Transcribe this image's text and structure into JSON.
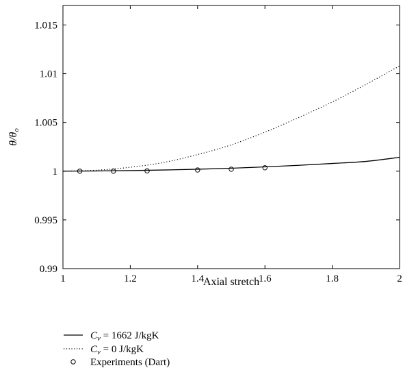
{
  "chart_data": {
    "type": "line",
    "title": "",
    "xlabel": "Axial stretch",
    "ylabel": {
      "main": "θ/θ",
      "sub": "o"
    },
    "xlim": [
      1,
      2
    ],
    "ylim": [
      0.99,
      1.017
    ],
    "xticks": [
      1,
      1.2,
      1.4,
      1.6,
      1.8,
      2
    ],
    "xtick_labels": [
      "1",
      "1.2",
      "1.4",
      "1.6",
      "1.8",
      "2"
    ],
    "yticks": [
      0.99,
      0.995,
      1,
      1.005,
      1.01,
      1.015
    ],
    "ytick_labels": [
      "0.99",
      "0.995",
      "1",
      "1.005",
      "1.01",
      "1.015"
    ],
    "grid": false,
    "legend_position": "below",
    "series": [
      {
        "name": "C_v = 1662 J/kgK",
        "legend": {
          "sym": "C",
          "sub": "v",
          "text": " = 1662 J/kgK"
        },
        "style": "solid",
        "x": [
          1.0,
          1.1,
          1.2,
          1.3,
          1.4,
          1.5,
          1.6,
          1.7,
          1.8,
          1.9,
          2.0
        ],
        "y": [
          1.0,
          1.00002,
          1.00006,
          1.00012,
          1.0002,
          1.0003,
          1.00044,
          1.0006,
          1.00079,
          1.001,
          1.00142
        ]
      },
      {
        "name": "C_v = 0 J/kgK",
        "legend": {
          "sym": "C",
          "sub": "v",
          "text": " = 0 J/kgK"
        },
        "style": "dotted",
        "x": [
          1.0,
          1.1,
          1.2,
          1.3,
          1.4,
          1.5,
          1.6,
          1.7,
          1.8,
          1.9,
          2.0
        ],
        "y": [
          1.0,
          1.0001,
          1.0004,
          1.0009,
          1.0017,
          1.0027,
          1.004,
          1.0055,
          1.0071,
          1.0089,
          1.0108
        ]
      },
      {
        "name": "Experiments (Dart)",
        "legend": {
          "text": "Experiments (Dart)"
        },
        "style": "markers",
        "marker": "circle",
        "x": [
          1.05,
          1.15,
          1.25,
          1.4,
          1.5,
          1.6
        ],
        "y": [
          1.0,
          1.0,
          1.00003,
          1.00012,
          1.0002,
          1.00035
        ]
      }
    ]
  }
}
